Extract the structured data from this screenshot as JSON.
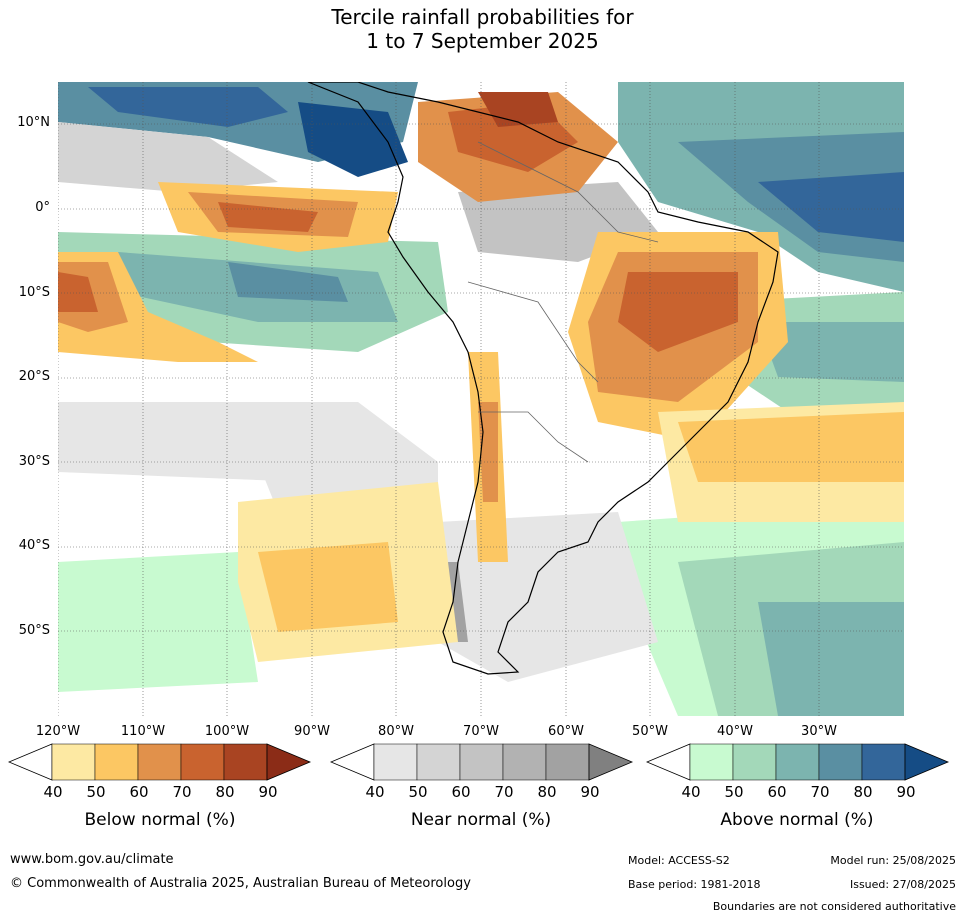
{
  "title": {
    "line1": "Tercile rainfall probabilities for",
    "line2": "1 to 7 September 2025"
  },
  "map": {
    "lat_labels": [
      "10°N",
      "0°",
      "10°S",
      "20°S",
      "30°S",
      "40°S",
      "50°S"
    ],
    "lon_labels": [
      "120°W",
      "110°W",
      "100°W",
      "90°W",
      "80°W",
      "70°W",
      "60°W",
      "50°W",
      "40°W",
      "30°W"
    ]
  },
  "colorbars": [
    {
      "label": "Below normal (%)",
      "ticks": [
        "40",
        "50",
        "60",
        "70",
        "80",
        "90"
      ],
      "colors": [
        "#fde9a3",
        "#fcc763",
        "#e1914b",
        "#c9632f",
        "#a94422",
        "#8b2c17"
      ]
    },
    {
      "label": "Near normal (%)",
      "ticks": [
        "40",
        "50",
        "60",
        "70",
        "80",
        "90"
      ],
      "colors": [
        "#e6e6e6",
        "#d4d4d4",
        "#c3c3c3",
        "#b2b2b2",
        "#a2a2a2",
        "#808080"
      ]
    },
    {
      "label": "Above normal (%)",
      "ticks": [
        "40",
        "50",
        "60",
        "70",
        "80",
        "90"
      ],
      "colors": [
        "#c8fad0",
        "#a3d8b9",
        "#7cb4af",
        "#5a8fa2",
        "#33669a",
        "#154c85"
      ]
    }
  ],
  "footer": {
    "website": "www.bom.gov.au/climate",
    "copyright": "© Commonwealth of Australia 2025, Australian Bureau of Meteorology",
    "model": "Model: ACCESS-S2",
    "model_run": "Model run: 25/08/2025",
    "base_period": "Base period: 1981-2018",
    "issued": "Issued: 27/08/2025",
    "disclaimer": "Boundaries are not considered authoritative"
  }
}
